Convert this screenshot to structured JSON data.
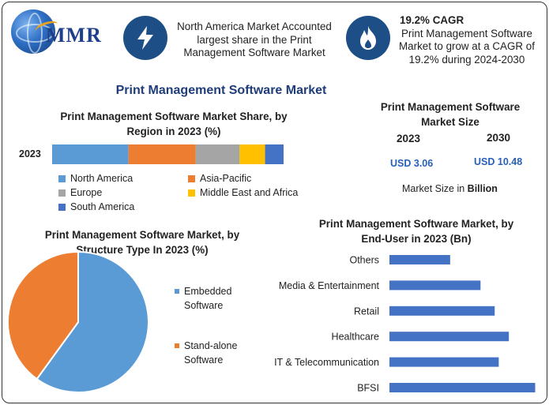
{
  "brand": {
    "name": "MMR"
  },
  "header": {
    "fact1": {
      "line1": "North America Market Accounted",
      "line2": "largest share in the Print",
      "line3": "Management Software Market",
      "icon": "lightning-icon"
    },
    "fact2": {
      "headline": "19.2% CAGR",
      "line1": "Print Management Software",
      "line2": "Market to grow at a CAGR of",
      "line3": "19.2% during 2024-2030",
      "icon": "flame-icon"
    }
  },
  "main_title": "Print Management Software Market",
  "market_size": {
    "title_line1": "Print Management Software",
    "title_line2": "Market Size",
    "year1": "2023",
    "year2": "2030",
    "value1": "USD 3.06",
    "value2": "USD 10.48",
    "note_prefix": "Market Size in ",
    "note_unit": "Billion"
  },
  "chart_data": [
    {
      "type": "bar",
      "orientation": "horizontal-stacked",
      "title": "Print Management Software Market Share, by Region in 2023 (%)",
      "title_line1": "Print Management Software Market Share, by",
      "title_line2": "Region in 2023 (%)",
      "categories": [
        "2023"
      ],
      "series": [
        {
          "name": "North America",
          "values": [
            33
          ],
          "color": "#5b9bd5"
        },
        {
          "name": "Asia-Pacific",
          "values": [
            29
          ],
          "color": "#ed7d31"
        },
        {
          "name": "Europe",
          "values": [
            19
          ],
          "color": "#a5a5a5"
        },
        {
          "name": "Middle East and Africa",
          "values": [
            11
          ],
          "color": "#ffc000"
        },
        {
          "name": "South America",
          "values": [
            8
          ],
          "color": "#4472c4"
        }
      ],
      "xlim": [
        0,
        100
      ]
    },
    {
      "type": "pie",
      "title": "Print Management Software Market, by Structure Type In 2023 (%)",
      "title_line1": "Print Management Software Market, by",
      "title_line2": "Structure Type In 2023 (%)",
      "labels": [
        "Embedded Software",
        "Stand-alone Software"
      ],
      "legend": [
        {
          "line1": "Embedded",
          "line2": "Software"
        },
        {
          "line1": "Stand-alone",
          "line2": "Software"
        }
      ],
      "values": [
        60,
        40
      ],
      "colors": [
        "#5b9bd5",
        "#ed7d31"
      ]
    },
    {
      "type": "bar",
      "orientation": "horizontal",
      "title": "Print Management Software Market, by End-User in 2023 (Bn)",
      "title_line1": "Print Management Software Market, by",
      "title_line2": "End-User in 2023 (Bn)",
      "categories": [
        "Others",
        "Media & Entertainment",
        "Retail",
        "Healthcare",
        "IT & Telecommunication",
        "BFSI"
      ],
      "values": [
        0.3,
        0.45,
        0.52,
        0.59,
        0.54,
        0.72
      ],
      "color": "#4472c4",
      "xlim": [
        0,
        0.8
      ]
    }
  ]
}
